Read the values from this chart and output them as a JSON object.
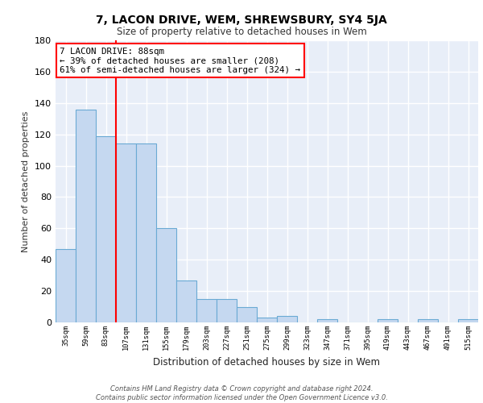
{
  "title": "7, LACON DRIVE, WEM, SHREWSBURY, SY4 5JA",
  "subtitle": "Size of property relative to detached houses in Wem",
  "xlabel": "Distribution of detached houses by size in Wem",
  "ylabel": "Number of detached properties",
  "categories": [
    "35sqm",
    "59sqm",
    "83sqm",
    "107sqm",
    "131sqm",
    "155sqm",
    "179sqm",
    "203sqm",
    "227sqm",
    "251sqm",
    "275sqm",
    "299sqm",
    "323sqm",
    "347sqm",
    "371sqm",
    "395sqm",
    "419sqm",
    "443sqm",
    "467sqm",
    "491sqm",
    "515sqm"
  ],
  "values": [
    47,
    136,
    119,
    114,
    114,
    60,
    27,
    15,
    15,
    10,
    3,
    4,
    0,
    2,
    0,
    0,
    2,
    0,
    2,
    0,
    2
  ],
  "bar_color": "#c5d8f0",
  "bar_edge_color": "#6aaad4",
  "red_line_x": 2.5,
  "annotation_text": "7 LACON DRIVE: 88sqm\n← 39% of detached houses are smaller (208)\n61% of semi-detached houses are larger (324) →",
  "annotation_box_color": "white",
  "annotation_box_edge_color": "red",
  "red_line_color": "red",
  "ylim": [
    0,
    180
  ],
  "yticks": [
    0,
    20,
    40,
    60,
    80,
    100,
    120,
    140,
    160,
    180
  ],
  "background_color": "#e8eef8",
  "grid_color": "white",
  "footer": "Contains HM Land Registry data © Crown copyright and database right 2024.\nContains public sector information licensed under the Open Government Licence v3.0."
}
